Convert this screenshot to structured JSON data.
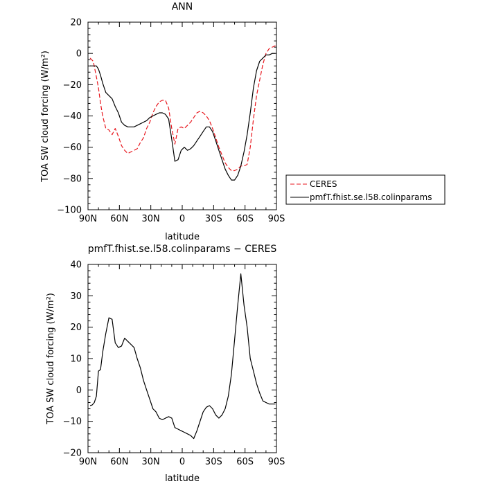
{
  "chart_data": [
    {
      "type": "line",
      "title": "ANN",
      "xlabel": "latitude",
      "ylabel": "TOA SW cloud forcing (W/m²)",
      "ylim": [
        -100,
        20
      ],
      "y_ticks": [
        20,
        0,
        -20,
        -40,
        -60,
        -80,
        -100
      ],
      "xlim": [
        90,
        -90
      ],
      "x_ticks": [
        90,
        60,
        30,
        0,
        -30,
        -60,
        -90
      ],
      "x_tick_labels": [
        "90N",
        "60N",
        "30N",
        "0",
        "30S",
        "60S",
        "90S"
      ],
      "legend": {
        "placement": "right-outside"
      },
      "series": [
        {
          "name": "CERES",
          "color": "#e8161d",
          "dash": "dashed",
          "x": [
            88,
            85,
            82,
            80,
            78,
            76,
            73,
            70,
            67,
            64,
            61,
            58,
            55,
            52,
            49,
            46,
            43,
            40,
            37,
            34,
            31,
            28,
            25,
            22,
            19,
            16,
            13,
            10,
            7,
            4,
            1,
            -2,
            -5,
            -8,
            -11,
            -14,
            -17,
            -20,
            -23,
            -26,
            -29,
            -32,
            -35,
            -38,
            -41,
            -44,
            -47,
            -50,
            -53,
            -56,
            -59,
            -62,
            -65,
            -68,
            -71,
            -74,
            -77,
            -80,
            -83,
            -86,
            -89
          ],
          "y": [
            -3,
            -5,
            -15,
            -22,
            -32,
            -40,
            -48,
            -49,
            -52,
            -48,
            -53,
            -59,
            -62,
            -64,
            -63,
            -62,
            -61,
            -57,
            -54,
            -48,
            -44,
            -38,
            -34,
            -31,
            -30,
            -30,
            -35,
            -48,
            -58,
            -48,
            -47,
            -48,
            -46,
            -44,
            -41,
            -38,
            -37,
            -38,
            -40,
            -43,
            -48,
            -54,
            -60,
            -65,
            -70,
            -73,
            -75,
            -75,
            -74,
            -72,
            -72,
            -71,
            -60,
            -42,
            -27,
            -17,
            -7,
            0,
            3,
            4,
            5
          ]
        },
        {
          "name": "pmfT.fhist.se.l58.colinparams",
          "color": "#000000",
          "dash": "solid",
          "x": [
            88,
            85,
            82,
            80,
            78,
            76,
            73,
            70,
            67,
            64,
            61,
            58,
            55,
            52,
            49,
            46,
            43,
            40,
            37,
            34,
            31,
            28,
            25,
            22,
            19,
            16,
            13,
            10,
            7,
            4,
            1,
            -2,
            -5,
            -8,
            -11,
            -14,
            -17,
            -20,
            -23,
            -26,
            -29,
            -32,
            -35,
            -38,
            -41,
            -44,
            -47,
            -50,
            -53,
            -56,
            -59,
            -62,
            -65,
            -68,
            -71,
            -74,
            -77,
            -80,
            -83,
            -86,
            -89
          ],
          "y": [
            -8,
            -8,
            -8,
            -10,
            -14,
            -19,
            -25,
            -27,
            -29,
            -34,
            -38,
            -44,
            -46,
            -47,
            -47,
            -47,
            -46,
            -45,
            -44,
            -43,
            -41,
            -40,
            -39,
            -38,
            -38,
            -39,
            -42,
            -55,
            -69,
            -68,
            -62,
            -60,
            -62,
            -61,
            -59,
            -56,
            -53,
            -50,
            -47,
            -47,
            -50,
            -56,
            -62,
            -68,
            -74,
            -78,
            -81,
            -81,
            -78,
            -72,
            -63,
            -52,
            -38,
            -22,
            -11,
            -5,
            -3,
            -1,
            -1,
            0,
            0
          ]
        }
      ]
    },
    {
      "type": "line",
      "title": "pmfT.fhist.se.l58.colinparams − CERES",
      "xlabel": "latitude",
      "ylabel": "TOA SW cloud forcing (W/m²)",
      "ylim": [
        -20,
        40
      ],
      "y_ticks": [
        40,
        30,
        20,
        10,
        0,
        -10,
        -20
      ],
      "xlim": [
        90,
        -90
      ],
      "x_ticks": [
        90,
        60,
        30,
        0,
        -30,
        -60,
        -90
      ],
      "x_tick_labels": [
        "90N",
        "60N",
        "30N",
        "0",
        "30S",
        "60S",
        "90S"
      ],
      "series": [
        {
          "color": "#000000",
          "dash": "solid",
          "x": [
            88,
            86,
            84,
            82,
            80,
            78,
            76,
            73,
            70,
            67,
            64,
            61,
            58,
            55,
            52,
            49,
            46,
            43,
            40,
            37,
            34,
            31,
            28,
            25,
            22,
            19,
            16,
            13,
            10,
            7,
            4,
            1,
            -2,
            -5,
            -8,
            -11,
            -14,
            -17,
            -20,
            -23,
            -26,
            -29,
            -32,
            -35,
            -38,
            -41,
            -44,
            -47,
            -50,
            -53,
            -56,
            -59,
            -62,
            -65,
            -68,
            -71,
            -74,
            -77,
            -80,
            -83,
            -86,
            -89
          ],
          "y": [
            -5,
            -4.8,
            -4,
            -2,
            6,
            6.5,
            12,
            18,
            23,
            22.5,
            15,
            13.5,
            14,
            16.5,
            15.5,
            14.5,
            13.5,
            10,
            7,
            3,
            0,
            -3,
            -6,
            -7,
            -9,
            -9.5,
            -9,
            -8.5,
            -9,
            -12,
            -12.5,
            -13,
            -13.5,
            -14,
            -14.5,
            -15.5,
            -13,
            -10,
            -7,
            -5.5,
            -5,
            -6,
            -8,
            -9,
            -8,
            -6,
            -2,
            5,
            16,
            27,
            37,
            27,
            20,
            10,
            6,
            2,
            -1,
            -3.5,
            -4,
            -4.5,
            -4.5,
            -4.5
          ]
        }
      ]
    }
  ]
}
